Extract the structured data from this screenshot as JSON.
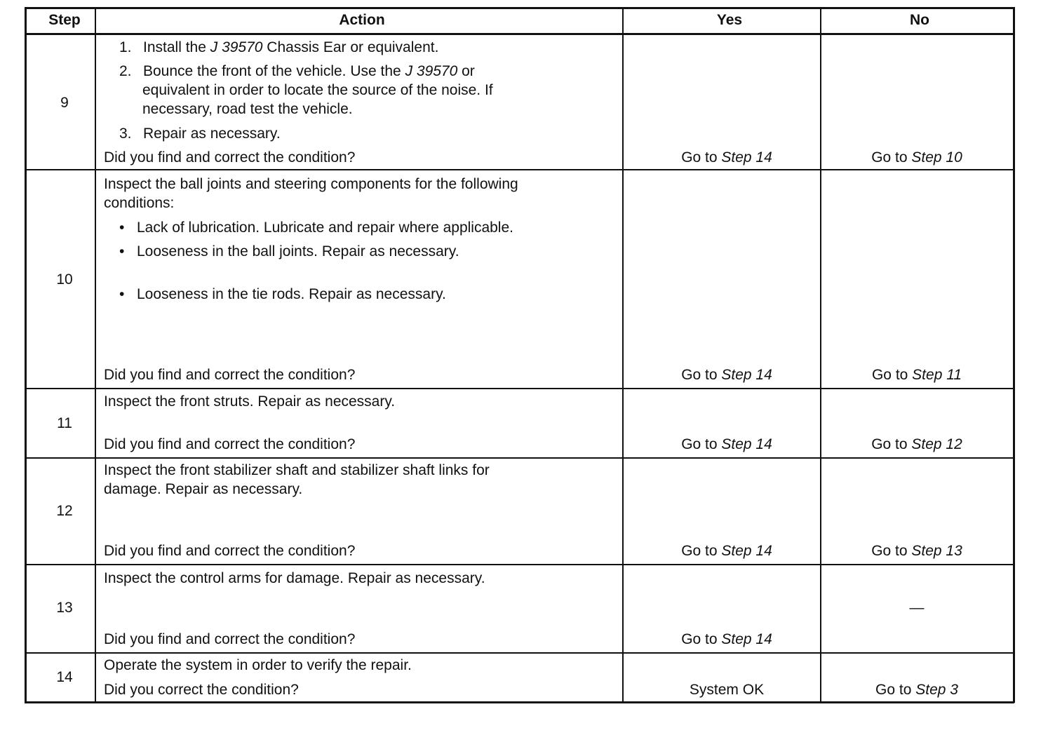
{
  "header": {
    "step": "Step",
    "action": "Action",
    "yes": "Yes",
    "no": "No"
  },
  "rows": [
    {
      "step": "9",
      "lines": [
        {
          "num": "1.",
          "segs": [
            {
              "t": "Install the "
            },
            {
              "t": "J 39570",
              "i": true
            },
            {
              "t": " Chassis Ear or equivalent."
            }
          ]
        },
        {
          "num": "2.",
          "segs": [
            {
              "t": "Bounce the front of the vehicle. Use the "
            },
            {
              "t": "J 39570",
              "i": true
            },
            {
              "t": " or"
            }
          ]
        },
        {
          "cont": true,
          "segs": [
            {
              "t": "equivalent in order to locate the source of the noise. If"
            }
          ]
        },
        {
          "cont": true,
          "segs": [
            {
              "t": "necessary, road test the vehicle."
            }
          ]
        },
        {
          "num": "3.",
          "segs": [
            {
              "t": "Repair as necessary."
            }
          ]
        },
        {
          "segs": [
            {
              "t": "Did you find and correct the condition?"
            }
          ]
        }
      ],
      "yes": {
        "prefix": "Go to ",
        "ref": "Step 14"
      },
      "no": {
        "prefix": "Go to ",
        "ref": "Step 10"
      }
    },
    {
      "step": "10",
      "lines": [
        {
          "segs": [
            {
              "t": "Inspect the ball joints and steering components for the following"
            }
          ]
        },
        {
          "segs": [
            {
              "t": "conditions:"
            }
          ]
        },
        {
          "bullet": "•",
          "segs": [
            {
              "t": "Lack of lubrication. Lubricate and repair where applicable."
            }
          ]
        },
        {
          "bullet": "•",
          "segs": [
            {
              "t": "Looseness in the ball joints. Repair as necessary."
            }
          ]
        },
        {
          "bullet": "•",
          "segs": [
            {
              "t": "Looseness in the tie rods. Repair as necessary."
            }
          ]
        },
        {
          "segs": [
            {
              "t": "Did you find and correct the condition?"
            }
          ]
        }
      ],
      "yes": {
        "prefix": "Go to ",
        "ref": "Step 14"
      },
      "no": {
        "prefix": "Go to ",
        "ref": "Step 11"
      }
    },
    {
      "step": "11",
      "lines": [
        {
          "segs": [
            {
              "t": "Inspect the front struts. Repair as necessary."
            }
          ]
        },
        {
          "segs": [
            {
              "t": "Did you find and correct the condition?"
            }
          ]
        }
      ],
      "yes": {
        "prefix": "Go to ",
        "ref": "Step 14"
      },
      "no": {
        "prefix": "Go to ",
        "ref": "Step 12"
      }
    },
    {
      "step": "12",
      "lines": [
        {
          "segs": [
            {
              "t": "Inspect the front stabilizer shaft and stabilizer shaft links for"
            }
          ]
        },
        {
          "segs": [
            {
              "t": "damage. Repair as necessary."
            }
          ]
        },
        {
          "segs": [
            {
              "t": "Did you find and correct the condition?"
            }
          ]
        }
      ],
      "yes": {
        "prefix": "Go to ",
        "ref": "Step 14"
      },
      "no": {
        "prefix": "Go to ",
        "ref": "Step 13"
      }
    },
    {
      "step": "13",
      "lines": [
        {
          "segs": [
            {
              "t": "Inspect the control arms for damage. Repair as necessary."
            }
          ]
        },
        {
          "segs": [
            {
              "t": "Did you find and correct the condition?"
            }
          ]
        }
      ],
      "yes": {
        "prefix": "Go to ",
        "ref": "Step 14"
      },
      "no": {
        "prefix": "—"
      }
    },
    {
      "step": "14",
      "lines": [
        {
          "segs": [
            {
              "t": "Operate the system in order to verify the repair."
            }
          ]
        },
        {
          "segs": [
            {
              "t": "Did you correct the condition?"
            }
          ]
        }
      ],
      "yes": {
        "prefix": "System OK"
      },
      "no": {
        "prefix": "Go to ",
        "ref": "Step 3"
      }
    }
  ]
}
